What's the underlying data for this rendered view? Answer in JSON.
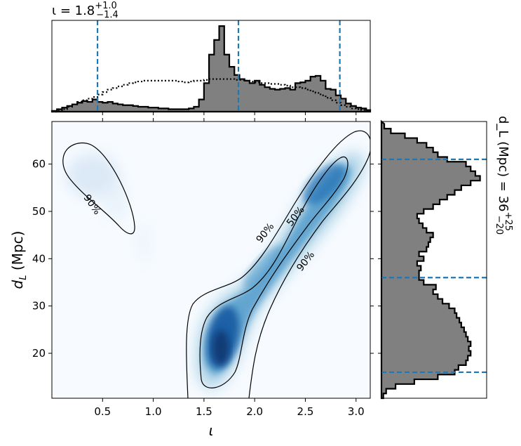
{
  "chart_data": [
    {
      "panel": "top-marginal",
      "type": "histogram",
      "title": {
        "main": "ι = 1.8",
        "sup": "+1.0",
        "sub": "−1.4"
      },
      "x": [
        0.0,
        0.05,
        0.1,
        0.15,
        0.2,
        0.25,
        0.3,
        0.35,
        0.4,
        0.45,
        0.5,
        0.55,
        0.6,
        0.65,
        0.7,
        0.75,
        0.8,
        0.85,
        0.9,
        0.95,
        1.0,
        1.05,
        1.1,
        1.15,
        1.2,
        1.25,
        1.3,
        1.35,
        1.4,
        1.45,
        1.5,
        1.55,
        1.6,
        1.65,
        1.7,
        1.75,
        1.8,
        1.85,
        1.9,
        1.95,
        2.0,
        2.05,
        2.1,
        2.15,
        2.2,
        2.25,
        2.3,
        2.35,
        2.4,
        2.45,
        2.5,
        2.55,
        2.6,
        2.65,
        2.7,
        2.75,
        2.8,
        2.85,
        2.9,
        2.95,
        3.0,
        3.05,
        3.1
      ],
      "series": [
        {
          "style": "filled-step",
          "color": "#808080",
          "values": [
            1,
            3,
            5,
            7,
            9,
            11,
            13,
            12,
            15,
            12,
            11,
            12,
            10,
            9,
            8,
            8,
            7,
            6,
            6,
            5,
            5,
            4,
            4,
            3,
            3,
            3,
            3,
            4,
            6,
            15,
            35,
            70,
            88,
            105,
            70,
            55,
            45,
            40,
            38,
            35,
            38,
            33,
            30,
            28,
            27,
            28,
            29,
            27,
            35,
            36,
            38,
            43,
            44,
            38,
            28,
            27,
            20,
            16,
            10,
            7,
            5,
            4,
            2
          ],
          "xlim": [
            0.0,
            3.14
          ]
        },
        {
          "style": "dotted-step",
          "color": "#000000",
          "values": [
            0,
            1,
            3,
            6,
            9,
            12,
            14,
            16,
            18,
            21,
            24,
            27,
            29,
            31,
            33,
            35,
            36,
            37,
            38,
            38,
            38,
            38,
            38,
            38,
            38,
            37,
            36,
            37,
            38,
            38,
            39,
            40,
            40,
            40,
            40,
            40,
            39,
            39,
            38,
            37,
            36,
            35,
            35,
            34,
            34,
            33,
            32,
            30,
            30,
            29,
            27,
            25,
            23,
            20,
            17,
            14,
            11,
            8,
            6,
            4,
            3,
            2,
            1
          ]
        }
      ],
      "quantiles": [
        0.45,
        1.84,
        2.84
      ],
      "ylim": [
        0,
        112
      ],
      "xlim": [
        0.0,
        3.14
      ]
    },
    {
      "panel": "joint",
      "type": "heatmap",
      "xlabel": "ι",
      "ylabel": "d_L (Mpc)",
      "xlim": [
        0.0,
        3.14
      ],
      "ylim": [
        10.5,
        69
      ],
      "xticks": [
        0.5,
        1.0,
        1.5,
        2.0,
        2.5,
        3.0
      ],
      "xtick_labels": [
        "0.5",
        "1.0",
        "1.5",
        "2.0",
        "2.5",
        "3.0"
      ],
      "yticks": [
        20,
        30,
        40,
        50,
        60
      ],
      "ytick_labels": [
        "20",
        "30",
        "40",
        "50",
        "60"
      ],
      "colormap": "Blues",
      "contour_labels": [
        {
          "text": "90%",
          "x": 0.4,
          "y": 51.5,
          "angle": 55
        },
        {
          "text": "90%",
          "x": 2.1,
          "y": 45.5,
          "angle": -52
        },
        {
          "text": "50%",
          "x": 2.4,
          "y": 49.0,
          "angle": -52
        },
        {
          "text": "90%",
          "x": 2.5,
          "y": 39.5,
          "angle": -52
        }
      ]
    },
    {
      "panel": "right-marginal",
      "type": "histogram",
      "orientation": "horizontal",
      "title": {
        "main": "d_L (Mpc) = 36",
        "sup": "+25",
        "sub": "−20"
      },
      "y": [
        11,
        12,
        13,
        14,
        15,
        16,
        17,
        18,
        19,
        20,
        21,
        22,
        23,
        24,
        25,
        26,
        27,
        28,
        29,
        30,
        31,
        32,
        33,
        34,
        35,
        36,
        37,
        38,
        39,
        40,
        41,
        42,
        43,
        44,
        45,
        46,
        47,
        48,
        49,
        50,
        51,
        52,
        53,
        54,
        55,
        56,
        57,
        58,
        59,
        60,
        61,
        62,
        63,
        64,
        65,
        66,
        67,
        68
      ],
      "values": [
        2,
        5,
        15,
        35,
        60,
        78,
        82,
        90,
        92,
        95,
        93,
        95,
        92,
        90,
        88,
        85,
        83,
        80,
        78,
        72,
        65,
        60,
        55,
        58,
        45,
        40,
        40,
        42,
        38,
        45,
        40,
        48,
        50,
        52,
        55,
        48,
        44,
        40,
        38,
        45,
        55,
        62,
        70,
        78,
        85,
        95,
        105,
        100,
        95,
        90,
        70,
        60,
        55,
        48,
        38,
        25,
        10,
        3
      ],
      "quantiles": [
        16,
        36,
        61
      ],
      "ylim": [
        10.5,
        69
      ],
      "xlim": [
        0,
        112
      ]
    }
  ]
}
